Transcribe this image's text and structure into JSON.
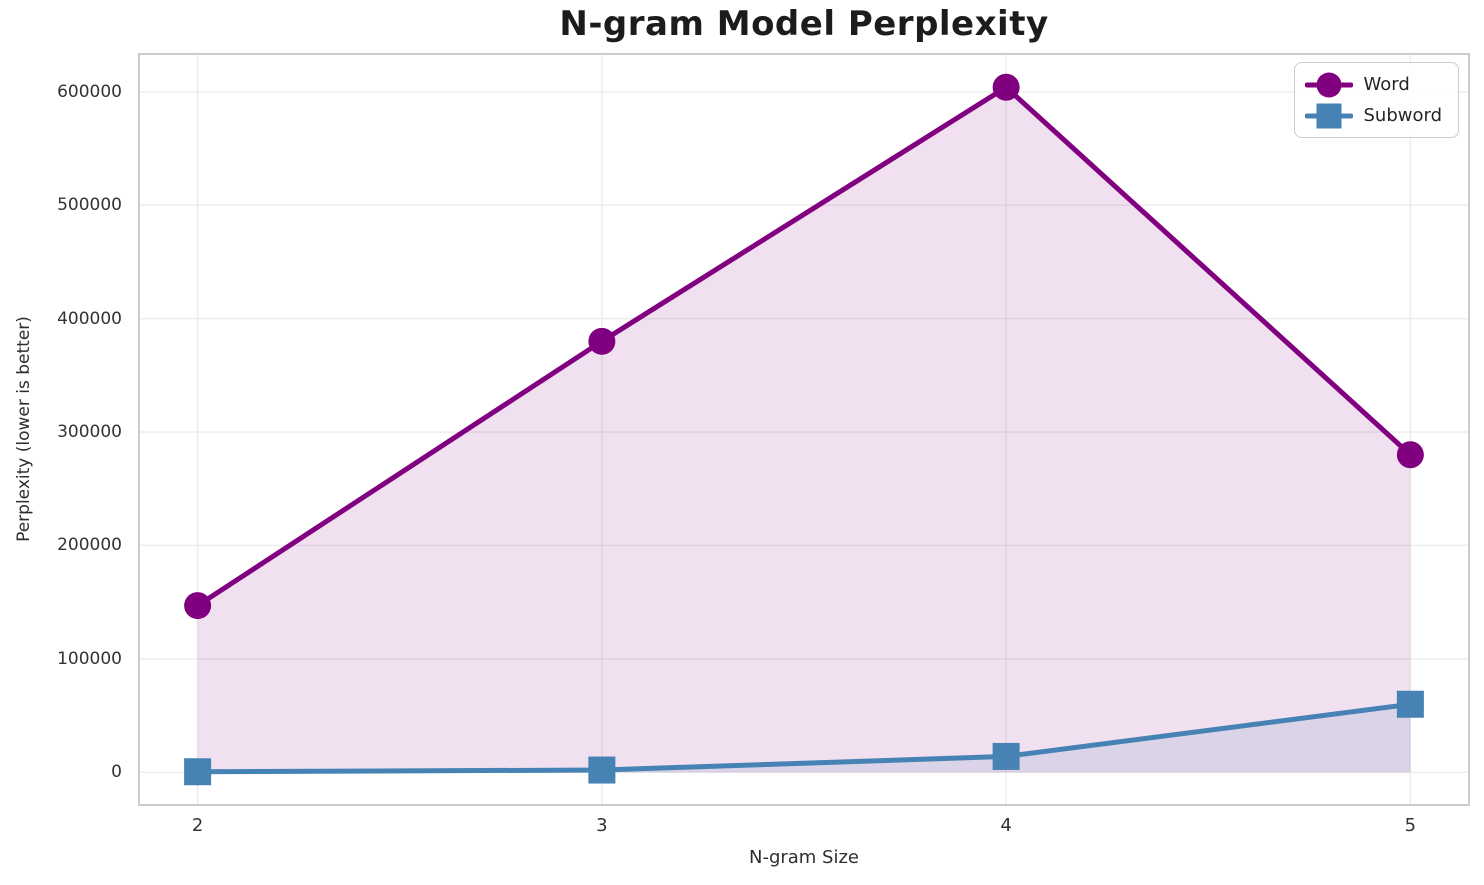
{
  "chart_data": {
    "type": "line",
    "title": "N-gram Model Perplexity",
    "xlabel": "N-gram Size",
    "ylabel": "Perplexity (lower is better)",
    "x": [
      2,
      3,
      4,
      5
    ],
    "series": [
      {
        "name": "Word",
        "marker": "circle",
        "color": "#800080",
        "fill_opacity": 0.12,
        "values": [
          147000,
          380000,
          604000,
          280000
        ]
      },
      {
        "name": "Subword",
        "marker": "square",
        "color": "#4682b4",
        "fill_opacity": 0.12,
        "values": [
          500,
          2000,
          14000,
          60000
        ]
      }
    ],
    "x_ticks": [
      2,
      3,
      4,
      5
    ],
    "y_ticks": [
      0,
      100000,
      200000,
      300000,
      400000,
      500000,
      600000
    ],
    "xlim": [
      1.8525,
      5.1475
    ],
    "ylim": [
      -29700,
      634200
    ],
    "grid": true,
    "area_fill_baseline": 0,
    "legend_position": "upper right",
    "line_width": 5,
    "marker_size": 27
  },
  "styles": {
    "background": "#ffffff",
    "grid_color": "#ececec",
    "spine_color": "#cccccc",
    "title_color": "#1c1c1c",
    "text_color": "#2e2e2e",
    "tick_color": "#333333",
    "word_color": "#800080",
    "subword_color": "#4682b4"
  }
}
